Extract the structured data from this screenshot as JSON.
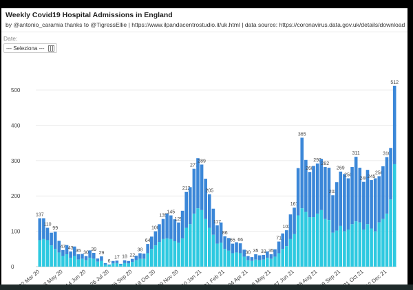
{
  "header": {
    "title": "Weekly Covid19 Hospital Admissions in England",
    "subtitle": "by @antonio_caramia thanks to @TigressEllie | https://www.ilpandacentrostudio.it/uk.html | data source: https://coronavirus.data.gov.uk/details/download"
  },
  "filter": {
    "label": "Date:",
    "value": "--- Seleziona ---",
    "icon": "calendar-icon"
  },
  "chart_data": {
    "type": "bar",
    "stacked": true,
    "title": "Weekly Covid19 Hospital Admissions in England",
    "xlabel": "",
    "ylabel": "",
    "ylim": [
      0,
      540
    ],
    "yticks": [
      0,
      100,
      200,
      300,
      400,
      500
    ],
    "grid": true,
    "x_tick_labels": [
      "22 Mar 20",
      "03 May 20",
      "14 Jun 20",
      "26 Jul 20",
      "06 Sep 20",
      "18 Oct 20",
      "29 Nov 20",
      "10 Jan 21",
      "21 Feb 21",
      "04 Apr 21",
      "16 May 21",
      "27 Jun 21",
      "08 Aug 21",
      "19 Sep 21",
      "31 Oct 21",
      "12 Dec 21"
    ],
    "colors": {
      "lower": "#2ec9e0",
      "upper": "#3b87d8"
    },
    "totals": [
      137,
      137,
      110,
      96,
      99,
      73,
      47,
      61,
      43,
      57,
      35,
      36,
      30,
      46,
      39,
      23,
      29,
      10,
      6,
      16,
      17,
      8,
      18,
      16,
      22,
      31,
      38,
      37,
      64,
      85,
      100,
      120,
      135,
      150,
      145,
      134,
      125,
      158,
      212,
      225,
      277,
      307,
      289,
      249,
      205,
      164,
      117,
      125,
      86,
      81,
      65,
      69,
      66,
      48,
      30,
      27,
      35,
      32,
      33,
      43,
      35,
      49,
      71,
      94,
      103,
      148,
      167,
      279,
      365,
      302,
      268,
      285,
      292,
      305,
      282,
      280,
      202,
      239,
      269,
      262,
      250,
      282,
      311,
      280,
      240,
      274,
      245,
      250,
      256,
      284,
      310,
      336,
      512
    ],
    "lower": [
      75,
      78,
      75,
      60,
      50,
      40,
      30,
      35,
      25,
      30,
      20,
      22,
      18,
      25,
      22,
      14,
      16,
      6,
      4,
      9,
      10,
      5,
      10,
      9,
      13,
      18,
      22,
      22,
      38,
      50,
      60,
      70,
      78,
      80,
      78,
      72,
      68,
      80,
      110,
      120,
      150,
      165,
      160,
      135,
      110,
      90,
      65,
      68,
      50,
      45,
      38,
      40,
      38,
      28,
      18,
      16,
      20,
      18,
      20,
      25,
      22,
      28,
      38,
      50,
      58,
      78,
      92,
      145,
      165,
      155,
      140,
      140,
      150,
      160,
      135,
      132,
      96,
      102,
      115,
      100,
      105,
      120,
      128,
      125,
      105,
      120,
      108,
      100,
      125,
      135,
      150,
      190,
      290
    ]
  }
}
